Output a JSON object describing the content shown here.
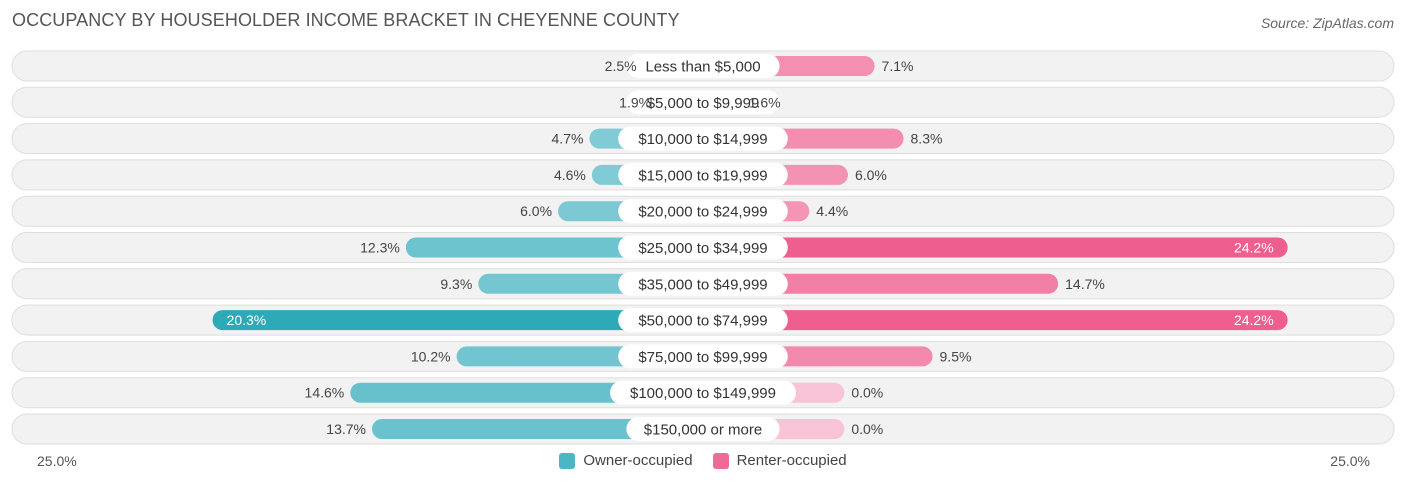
{
  "title": "OCCUPANCY BY HOUSEHOLDER INCOME BRACKET IN CHEYENNE COUNTY",
  "source": "Source: ZipAtlas.com",
  "axis": {
    "left_label": "25.0%",
    "right_label": "25.0%"
  },
  "legend": [
    {
      "label": "Owner-occupied",
      "color": "#4db6c4"
    },
    {
      "label": "Renter-occupied",
      "color": "#f06a97"
    }
  ],
  "chart_data": {
    "type": "bar",
    "orientation": "horizontal-diverging",
    "max": 25.0,
    "categories": [
      "Less than $5,000",
      "$5,000 to $9,999",
      "$10,000 to $14,999",
      "$15,000 to $19,999",
      "$20,000 to $24,999",
      "$25,000 to $34,999",
      "$35,000 to $49,999",
      "$50,000 to $74,999",
      "$75,000 to $99,999",
      "$100,000 to $149,999",
      "$150,000 or more"
    ],
    "series": [
      {
        "name": "Owner-occupied",
        "color": "#4db6c4",
        "values": [
          2.5,
          1.9,
          4.7,
          4.6,
          6.0,
          12.3,
          9.3,
          20.3,
          10.2,
          14.6,
          13.7
        ]
      },
      {
        "name": "Renter-occupied",
        "color": "#f06a97",
        "values": [
          7.1,
          1.6,
          8.3,
          6.0,
          4.4,
          24.2,
          14.7,
          24.2,
          9.5,
          0.0,
          0.0
        ]
      }
    ],
    "value_labels": {
      "owner": [
        "2.5%",
        "1.9%",
        "4.7%",
        "4.6%",
        "6.0%",
        "12.3%",
        "9.3%",
        "20.3%",
        "10.2%",
        "14.6%",
        "13.7%"
      ],
      "renter": [
        "7.1%",
        "1.6%",
        "8.3%",
        "6.0%",
        "4.4%",
        "24.2%",
        "14.7%",
        "24.2%",
        "9.5%",
        "0.0%",
        "0.0%"
      ]
    }
  }
}
